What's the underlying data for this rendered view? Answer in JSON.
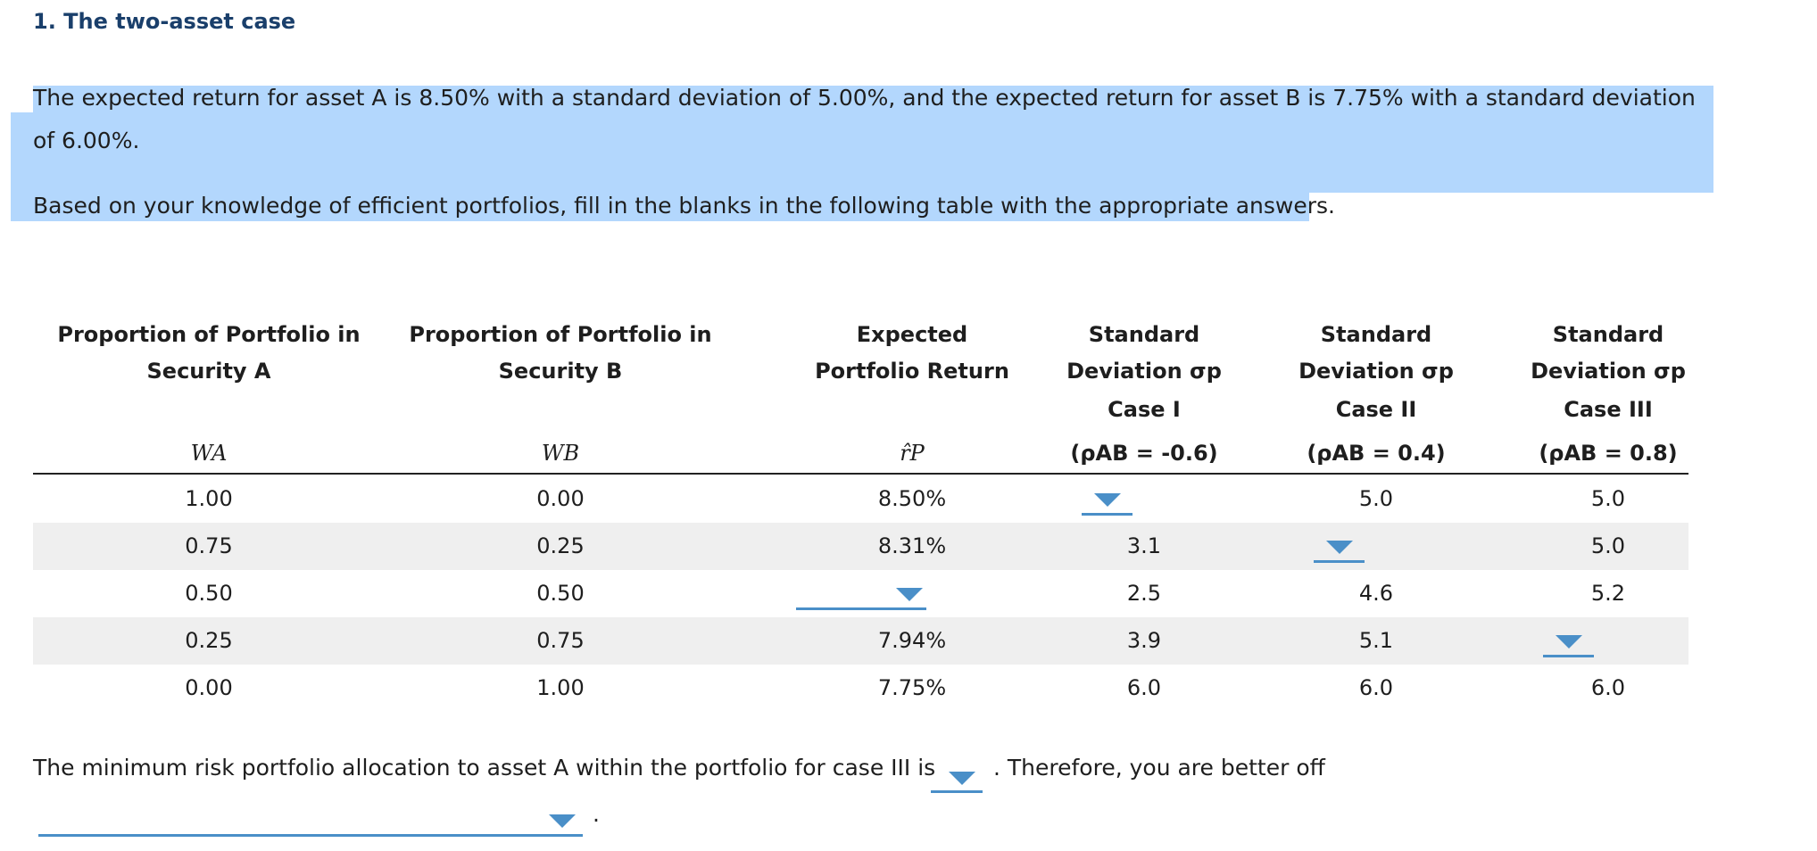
{
  "title": "1. The two-asset case",
  "paragraph1": "The expected return for asset A is 8.50% with a standard deviation of 5.00%, and the expected return for asset B is 7.75% with a standard deviation of 6.00%.",
  "paragraph2": "Based on your knowledge of efficient portfolios, fill in the blanks in the following table with the appropriate answers.",
  "table": {
    "headers": [
      {
        "line1": "Proportion of Portfolio in",
        "line2": "Security A",
        "line3": "",
        "symbol": "WA"
      },
      {
        "line1": "Proportion of Portfolio in",
        "line2": "Security B",
        "line3": "",
        "symbol": "WB"
      },
      {
        "line1": "Expected",
        "line2": "Portfolio Return",
        "line3": "",
        "symbol": "r̂P"
      },
      {
        "line1": "Standard",
        "line2": "Deviation σp",
        "line3": "Case I",
        "symbol": "(ρAB = -0.6)"
      },
      {
        "line1": "Standard",
        "line2": "Deviation σp",
        "line3": "Case II",
        "symbol": "(ρAB = 0.4)"
      },
      {
        "line1": "Standard",
        "line2": "Deviation σp",
        "line3": "Case III",
        "symbol": "(ρAB = 0.8)"
      }
    ],
    "rows": [
      [
        "1.00",
        "0.00",
        "8.50%",
        "",
        "5.0",
        "5.0"
      ],
      [
        "0.75",
        "0.25",
        "8.31%",
        "3.1",
        "",
        "5.0"
      ],
      [
        "0.50",
        "0.50",
        "",
        "2.5",
        "4.6",
        "5.2"
      ],
      [
        "0.25",
        "0.75",
        "7.94%",
        "3.9",
        "5.1",
        ""
      ],
      [
        "0.00",
        "1.00",
        "7.75%",
        "6.0",
        "6.0",
        "6.0"
      ]
    ]
  },
  "bottom": {
    "text_before": "The minimum risk portfolio allocation to asset A within the portfolio for case III is",
    "text_after": ". Therefore, you are better off",
    "period": "."
  },
  "colors": {
    "highlight": "#b3d7fd",
    "dropdown_accent": "#4a8fc8",
    "title": "#1a3f6b"
  }
}
